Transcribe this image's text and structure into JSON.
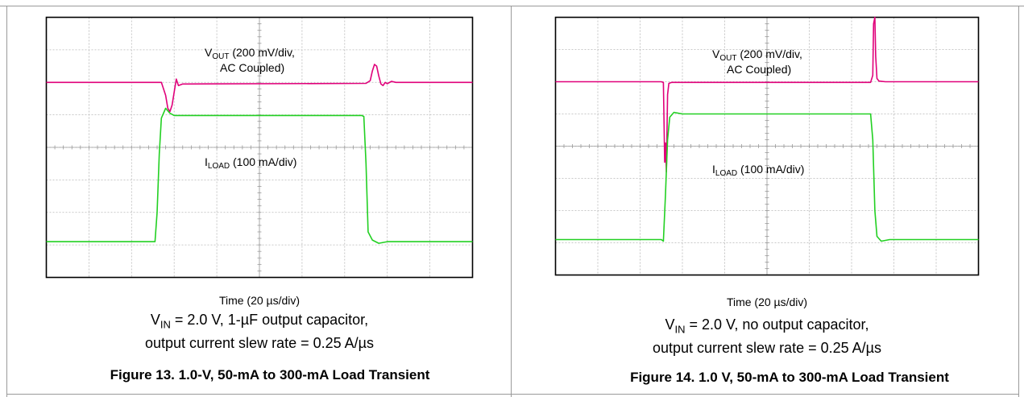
{
  "figures": [
    {
      "id": "fig13",
      "vout_label_main": "V",
      "vout_label_sub": "OUT",
      "vout_label_rest": " (200 mV/div,",
      "vout_label_line2": "AC Coupled)",
      "iload_label_main": "I",
      "iload_label_sub": "LOAD",
      "iload_label_rest": " (100 mA/div)",
      "x_caption": "Time (20 µs/div)",
      "condition_pre": "V",
      "condition_sub": "IN",
      "condition_line1_rest": " = 2.0 V, 1-µF output capacitor,",
      "condition_line2": "output current slew rate = 0.25 A/µs",
      "title": "Figure 13. 1.0-V, 50-mA to 300-mA Load Transient"
    },
    {
      "id": "fig14",
      "vout_label_main": "V",
      "vout_label_sub": "OUT",
      "vout_label_rest": " (200 mV/div,",
      "vout_label_line2": "AC Coupled)",
      "iload_label_main": "I",
      "iload_label_sub": "LOAD",
      "iload_label_rest": " (100 mA/div)",
      "x_caption": "Time (20 µs/div)",
      "condition_pre": "V",
      "condition_sub": "IN",
      "condition_line1_rest": " = 2.0 V, no output capacitor,",
      "condition_line2": "output current slew rate = 0.25 A/µs",
      "title": "Figure 14. 1.0 V, 50-mA to 300-mA Load Transient"
    }
  ],
  "chart_data": [
    {
      "type": "line",
      "grid": true,
      "x_divisions": 10,
      "y_divisions": 8,
      "colors": {
        "vout": "#e0007a",
        "iload": "#22d022",
        "grid": "#b8b8b8"
      },
      "series": [
        {
          "name": "VOUT (200 mV/div, AC Coupled)",
          "x": [
            0,
            2.5,
            2.7,
            2.8,
            2.85,
            2.9,
            2.95,
            3.0,
            3.05,
            3.1,
            3.2,
            3.3,
            7.5,
            7.6,
            7.65,
            7.7,
            7.75,
            7.8,
            7.85,
            7.9,
            7.95,
            8.0,
            8.1,
            8.2,
            10
          ],
          "y": [
            6.0,
            6.0,
            6.0,
            5.6,
            5.2,
            5.1,
            5.3,
            5.7,
            6.1,
            5.9,
            5.95,
            5.95,
            5.97,
            6.05,
            6.35,
            6.55,
            6.5,
            6.2,
            5.95,
            5.9,
            6.0,
            5.96,
            6.03,
            6.0,
            6.0
          ]
        },
        {
          "name": "ILOAD (100 mA/div)",
          "x": [
            0,
            2.5,
            2.55,
            2.6,
            2.65,
            2.7,
            2.8,
            2.9,
            3.0,
            7.4,
            7.45,
            7.5,
            7.55,
            7.65,
            7.8,
            8.0,
            10
          ],
          "y": [
            1.1,
            1.1,
            1.1,
            2.0,
            3.8,
            4.9,
            5.2,
            5.05,
            4.98,
            4.98,
            4.95,
            3.5,
            1.4,
            1.15,
            1.05,
            1.1,
            1.1
          ]
        }
      ],
      "xlabel": "Time (20 µs/div)"
    },
    {
      "type": "line",
      "grid": true,
      "x_divisions": 10,
      "y_divisions": 8,
      "colors": {
        "vout": "#e0007a",
        "iload": "#22d022",
        "grid": "#b8b8b8"
      },
      "series": [
        {
          "name": "VOUT (200 mV/div, AC Coupled)",
          "x": [
            0,
            2.5,
            2.55,
            2.58,
            2.6,
            2.62,
            2.65,
            2.68,
            2.75,
            2.9,
            7.45,
            7.5,
            7.52,
            7.55,
            7.57,
            7.6,
            7.65,
            7.8,
            10
          ],
          "y": [
            6.0,
            6.0,
            5.98,
            3.5,
            4.1,
            3.2,
            5.6,
            5.95,
            5.98,
            5.98,
            5.98,
            6.2,
            7.8,
            8.0,
            6.8,
            6.1,
            6.02,
            6.0,
            6.0
          ]
        },
        {
          "name": "ILOAD (100 mA/div)",
          "x": [
            0,
            2.5,
            2.55,
            2.6,
            2.65,
            2.7,
            2.8,
            3.0,
            7.45,
            7.5,
            7.55,
            7.6,
            7.7,
            7.9,
            10
          ],
          "y": [
            1.1,
            1.1,
            1.05,
            2.5,
            4.2,
            4.9,
            5.05,
            5.0,
            5.0,
            4.2,
            2.0,
            1.2,
            1.05,
            1.1,
            1.1
          ]
        }
      ],
      "xlabel": "Time (20 µs/div)"
    }
  ]
}
